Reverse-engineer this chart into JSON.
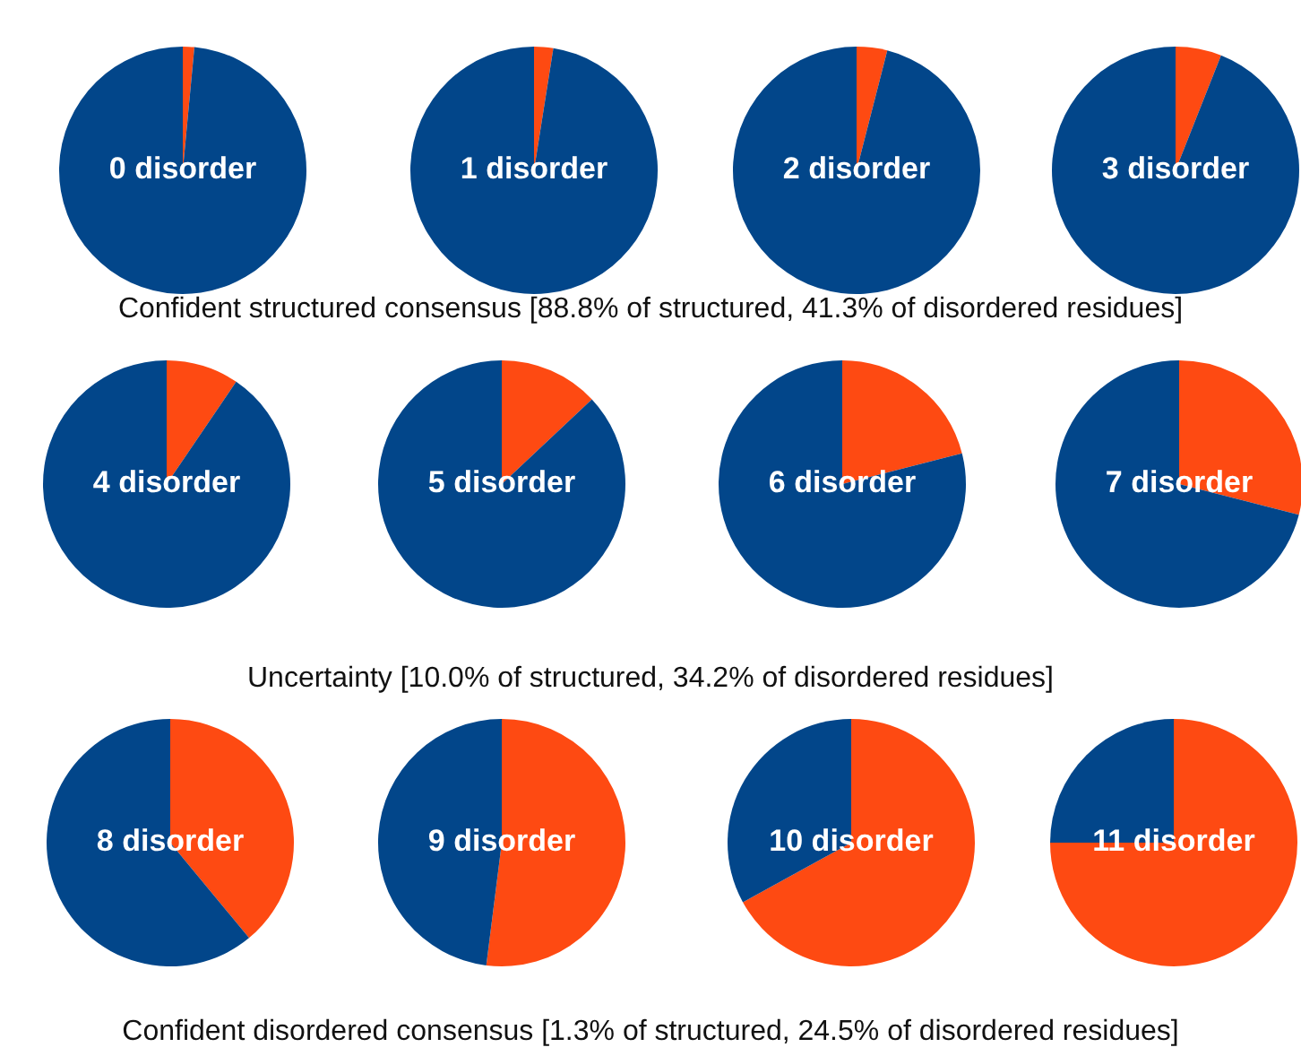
{
  "chart_data": [
    {
      "type": "pie",
      "title": "0 disorder",
      "categories": [
        null,
        null
      ],
      "values": [
        1.5,
        98.5
      ],
      "colors": [
        "#fe4a12",
        "#02468a"
      ],
      "legend": false,
      "annotations": [
        "Confident structured consensus [88.8% of structured, 41.3% of disordered residues]"
      ]
    },
    {
      "type": "pie",
      "title": "1 disorder",
      "categories": [
        null,
        null
      ],
      "values": [
        2.5,
        97.5
      ],
      "colors": [
        "#fe4a12",
        "#02468a"
      ],
      "legend": false
    },
    {
      "type": "pie",
      "title": "2 disorder",
      "categories": [
        null,
        null
      ],
      "values": [
        4,
        96
      ],
      "colors": [
        "#fe4a12",
        "#02468a"
      ],
      "legend": false
    },
    {
      "type": "pie",
      "title": "3 disorder",
      "categories": [
        null,
        null
      ],
      "values": [
        6,
        94
      ],
      "colors": [
        "#fe4a12",
        "#02468a"
      ],
      "legend": false
    },
    {
      "type": "pie",
      "title": "4 disorder",
      "categories": [
        null,
        null
      ],
      "values": [
        9.5,
        90.5
      ],
      "colors": [
        "#fe4a12",
        "#02468a"
      ],
      "legend": false,
      "annotations": [
        "Uncertainty [10.0% of structured, 34.2% of disordered residues]"
      ]
    },
    {
      "type": "pie",
      "title": "5 disorder",
      "categories": [
        null,
        null
      ],
      "values": [
        13,
        87
      ],
      "colors": [
        "#fe4a12",
        "#02468a"
      ],
      "legend": false
    },
    {
      "type": "pie",
      "title": "6 disorder",
      "categories": [
        null,
        null
      ],
      "values": [
        21,
        79
      ],
      "colors": [
        "#fe4a12",
        "#02468a"
      ],
      "legend": false
    },
    {
      "type": "pie",
      "title": "7 disorder",
      "categories": [
        null,
        null
      ],
      "values": [
        29,
        71
      ],
      "colors": [
        "#fe4a12",
        "#02468a"
      ],
      "legend": false
    },
    {
      "type": "pie",
      "title": "8 disorder",
      "categories": [
        null,
        null
      ],
      "values": [
        39,
        61
      ],
      "colors": [
        "#fe4a12",
        "#02468a"
      ],
      "legend": false,
      "annotations": [
        "Confident disordered consensus [1.3% of structured, 24.5% of disordered residues]"
      ]
    },
    {
      "type": "pie",
      "title": "9 disorder",
      "categories": [
        null,
        null
      ],
      "values": [
        52,
        48
      ],
      "colors": [
        "#fe4a12",
        "#02468a"
      ],
      "legend": false
    },
    {
      "type": "pie",
      "title": "10 disorder",
      "categories": [
        null,
        null
      ],
      "values": [
        67,
        33
      ],
      "colors": [
        "#fe4a12",
        "#02468a"
      ],
      "legend": false
    },
    {
      "type": "pie",
      "title": "11 disorder",
      "categories": [
        null,
        null
      ],
      "values": [
        75,
        25
      ],
      "colors": [
        "#fe4a12",
        "#02468a"
      ],
      "legend": false
    }
  ]
}
